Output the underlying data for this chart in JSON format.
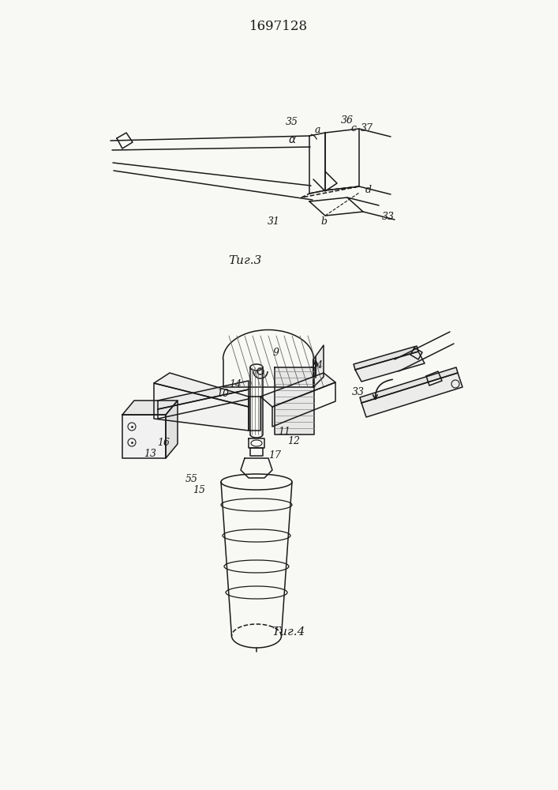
{
  "title": "1697128",
  "bg_color": "#f8f8f5",
  "black": "#1a1a1a",
  "fig3_caption": "Τиг.3",
  "fig4_caption": "Τиг.4"
}
